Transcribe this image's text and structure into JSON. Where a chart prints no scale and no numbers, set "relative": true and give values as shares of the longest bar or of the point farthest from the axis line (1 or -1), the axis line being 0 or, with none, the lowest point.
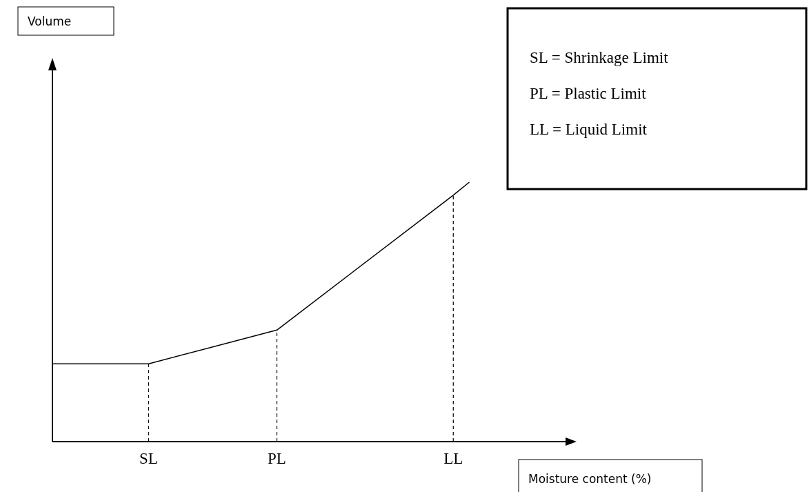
{
  "chart_data": {
    "type": "line",
    "relative": true,
    "xlabel": "Moisture content (%)",
    "categories": [
      null,
      null,
      null,
      null,
      null,
      null,
      "SL",
      null,
      null,
      null,
      null,
      null,
      null,
      null,
      "PL",
      null,
      null,
      null,
      null,
      null,
      null,
      null,
      null,
      null,
      null,
      "LL",
      null,
      null,
      null,
      null,
      null,
      null,
      null
    ],
    "tick_labels": "x",
    "marker": "none",
    "series": [
      {
        "color": "#000000",
        "line_style": "solid",
        "values": [
          0.3,
          null,
          null,
          null,
          null,
          null,
          0.3,
          null,
          null,
          null,
          null,
          null,
          null,
          null,
          0.43,
          null,
          null,
          null,
          null,
          null,
          null,
          null,
          null,
          null,
          null,
          0.95,
          1,
          null,
          null,
          null,
          null,
          null,
          null
        ]
      }
    ],
    "ref_lines": [
      {
        "axis": "x",
        "value": "SL",
        "color": "#000000",
        "line_style": "dashed"
      },
      {
        "axis": "x",
        "value": "PL",
        "color": "#000000",
        "line_style": "dashed"
      },
      {
        "axis": "x",
        "value": "LL",
        "color": "#000000",
        "line_style": "dashed"
      }
    ],
    "annotations": [
      "Volume",
      "SL = Shrinkage Limit",
      "PL = Plastic Limit",
      "LL = Liquid Limit"
    ]
  }
}
